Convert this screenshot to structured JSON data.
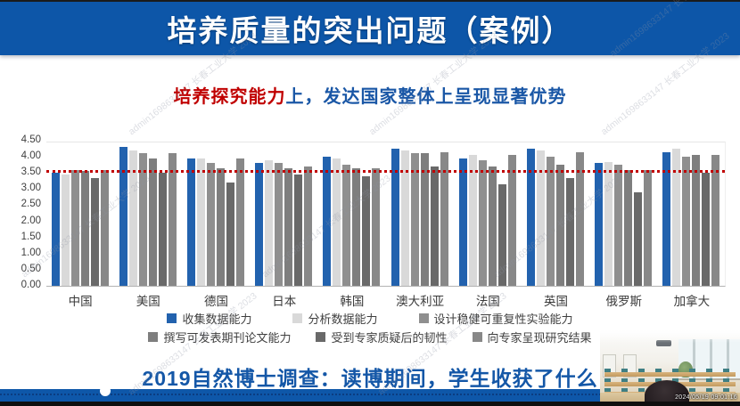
{
  "header": {
    "title": "培养质量的突出问题（案例）"
  },
  "subtitle": {
    "red_part": "培养探究能力",
    "blue_part": "上，发达国家整体上呈现显著优势"
  },
  "watermark": {
    "text": "admin1698633147 长春工业大学 2023"
  },
  "chart_data": {
    "type": "bar",
    "title": "",
    "xlabel": "",
    "ylabel": "",
    "ylim": [
      0,
      4.5
    ],
    "yticks": [
      "0.00",
      "0.50",
      "1.00",
      "1.50",
      "2.00",
      "2.50",
      "3.00",
      "3.50",
      "4.00",
      "4.50"
    ],
    "grid": false,
    "legend_position": "bottom",
    "reference_line": {
      "value": 3.5,
      "color": "#c00000",
      "style": "dotted"
    },
    "categories": [
      "中国",
      "美国",
      "德国",
      "日本",
      "韩国",
      "澳大利亚",
      "法国",
      "英国",
      "俄罗斯",
      "加拿大"
    ],
    "series": [
      {
        "name": "收集数据能力",
        "color": "#2262ae",
        "values": [
          3.5,
          4.3,
          3.95,
          3.8,
          4.0,
          4.25,
          3.95,
          4.25,
          3.8,
          4.15
        ]
      },
      {
        "name": "分析数据能力",
        "color": "#d9d9d9",
        "values": [
          3.45,
          4.2,
          3.95,
          3.9,
          3.95,
          4.2,
          4.05,
          4.2,
          3.85,
          4.25
        ]
      },
      {
        "name": "设计稳健可重复性实验能力",
        "color": "#8f8f8f",
        "values": [
          3.6,
          4.1,
          3.8,
          3.8,
          3.75,
          4.1,
          3.9,
          4.0,
          3.75,
          4.0
        ]
      },
      {
        "name": "撰写可发表期刊论文能力",
        "color": "#7e7e7e",
        "values": [
          3.55,
          3.95,
          3.65,
          3.65,
          3.65,
          4.1,
          3.7,
          3.75,
          3.6,
          4.05
        ]
      },
      {
        "name": "受到专家质疑后的韧性",
        "color": "#696969",
        "values": [
          3.35,
          3.5,
          3.2,
          3.45,
          3.4,
          3.7,
          3.15,
          3.35,
          2.9,
          3.5
        ]
      },
      {
        "name": "向专家呈现研究结果",
        "color": "#888888",
        "values": [
          3.6,
          4.1,
          3.95,
          3.7,
          3.65,
          4.15,
          4.05,
          4.15,
          3.6,
          4.05
        ]
      }
    ]
  },
  "footer": {
    "lead": "2019自然博士调查：",
    "rest": "读博期间，学生收获了什么"
  },
  "webcam": {
    "timestamp": "2024/05/19 09:01:16"
  }
}
